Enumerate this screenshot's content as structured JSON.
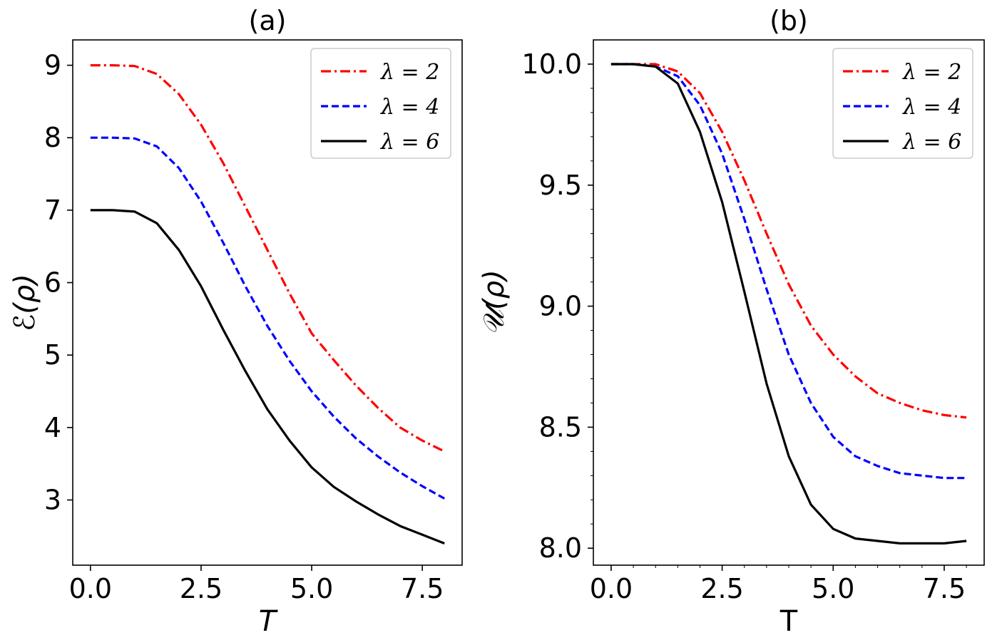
{
  "chart_data": [
    {
      "type": "line",
      "title": "(a)",
      "xlabel": "T",
      "ylabel": "ℰ(ρ)",
      "xlim": [
        -0.4,
        8.4
      ],
      "ylim": [
        2.1,
        9.35
      ],
      "xticks": [
        "0.0",
        "2.5",
        "5.0",
        "7.5"
      ],
      "xtick_values": [
        0,
        2.5,
        5,
        7.5
      ],
      "yticks": [
        "3",
        "4",
        "5",
        "6",
        "7",
        "8",
        "9"
      ],
      "ytick_values": [
        3,
        4,
        5,
        6,
        7,
        8,
        9
      ],
      "legend_position": "top-right",
      "x": [
        0,
        0.5,
        1,
        1.5,
        2,
        2.5,
        3,
        3.5,
        4,
        4.5,
        5,
        5.5,
        6,
        6.5,
        7,
        7.5,
        8
      ],
      "series": [
        {
          "name": "λ = 2",
          "color": "#ff0000",
          "dash": "dashdot",
          "values": [
            9.0,
            9.0,
            8.99,
            8.88,
            8.6,
            8.18,
            7.65,
            7.05,
            6.45,
            5.85,
            5.3,
            4.93,
            4.58,
            4.27,
            4.0,
            3.82,
            3.67
          ]
        },
        {
          "name": "λ = 4",
          "color": "#0000ff",
          "dash": "dashed",
          "values": [
            8.0,
            8.0,
            7.99,
            7.88,
            7.58,
            7.12,
            6.55,
            5.95,
            5.4,
            4.92,
            4.5,
            4.15,
            3.85,
            3.6,
            3.38,
            3.19,
            3.02
          ]
        },
        {
          "name": "λ = 6",
          "color": "#000000",
          "dash": "solid",
          "values": [
            7.0,
            7.0,
            6.98,
            6.82,
            6.45,
            5.95,
            5.35,
            4.78,
            4.25,
            3.82,
            3.45,
            3.18,
            2.98,
            2.8,
            2.64,
            2.52,
            2.4
          ]
        }
      ]
    },
    {
      "type": "line",
      "title": "(b)",
      "xlabel": "T",
      "ylabel": "𝒰(ρ)",
      "xlim": [
        -0.4,
        8.4
      ],
      "ylim": [
        7.93,
        10.1
      ],
      "xticks": [
        "0.0",
        "2.5",
        "5.0",
        "7.5"
      ],
      "xtick_values": [
        0,
        2.5,
        5,
        7.5
      ],
      "yticks": [
        "8.0",
        "8.5",
        "9.0",
        "9.5",
        "10.0"
      ],
      "ytick_values": [
        8.0,
        8.5,
        9.0,
        9.5,
        10.0
      ],
      "legend_position": "top-right",
      "x": [
        0,
        0.5,
        1,
        1.5,
        2,
        2.5,
        3,
        3.5,
        4,
        4.5,
        5,
        5.5,
        6,
        6.5,
        7,
        7.5,
        8
      ],
      "series": [
        {
          "name": "λ = 2",
          "color": "#ff0000",
          "dash": "dashdot",
          "values": [
            10.0,
            10.0,
            10.0,
            9.97,
            9.88,
            9.72,
            9.52,
            9.3,
            9.09,
            8.92,
            8.8,
            8.71,
            8.64,
            8.6,
            8.57,
            8.55,
            8.54
          ]
        },
        {
          "name": "λ = 4",
          "color": "#0000ff",
          "dash": "dashed",
          "values": [
            10.0,
            10.0,
            9.99,
            9.95,
            9.83,
            9.63,
            9.36,
            9.07,
            8.8,
            8.6,
            8.46,
            8.38,
            8.34,
            8.31,
            8.3,
            8.29,
            8.29
          ]
        },
        {
          "name": "λ = 6",
          "color": "#000000",
          "dash": "solid",
          "values": [
            10.0,
            10.0,
            9.99,
            9.92,
            9.72,
            9.43,
            9.06,
            8.68,
            8.38,
            8.18,
            8.08,
            8.04,
            8.03,
            8.02,
            8.02,
            8.02,
            8.03
          ]
        }
      ]
    }
  ]
}
